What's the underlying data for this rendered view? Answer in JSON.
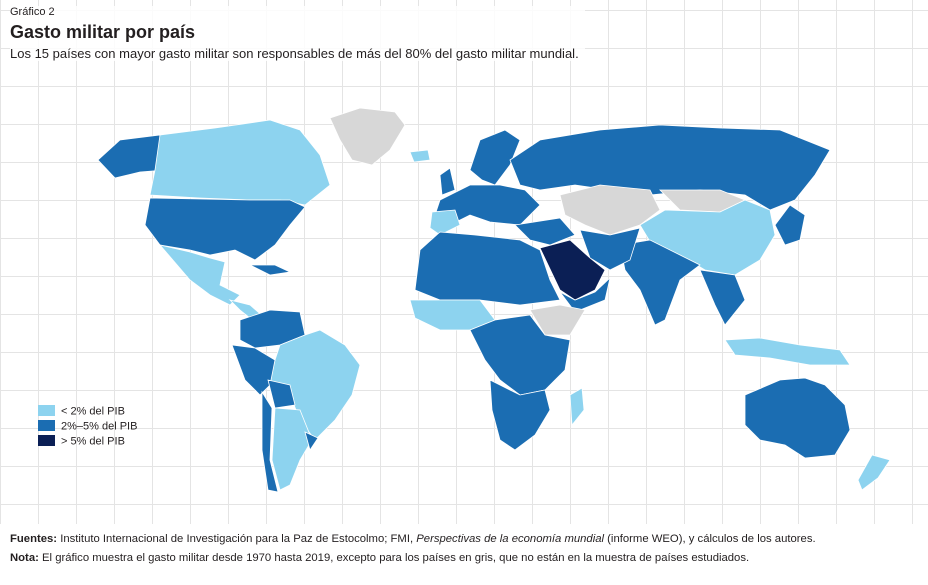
{
  "header": {
    "label": "Gráfico 2",
    "title": "Gasto militar por país",
    "subtitle": "Los 15 países con mayor gasto militar son responsables de más del 80% del gasto militar mundial."
  },
  "legend": {
    "items": [
      {
        "label": "< 2% del PIB",
        "color": "#8dd3ef"
      },
      {
        "label": "2%–5% del PIB",
        "color": "#1b6db2"
      },
      {
        "label": "> 5% del PIB",
        "color": "#0b1f55"
      }
    ]
  },
  "footer": {
    "sources": {
      "label": "Fuentes:",
      "text_before": " Instituto Internacional de Investigación para la Paz de Estocolmo; FMI, ",
      "italic": "Perspectivas de la economía mundial",
      "text_after": " (informe WEO), y cálculos de los autores."
    },
    "note": {
      "label": "Nota:",
      "text": " El gráfico muestra el gasto militar desde 1970 hasta 2019, excepto para los países en gris, que no están en la muestra de países estudiados."
    }
  }
}
